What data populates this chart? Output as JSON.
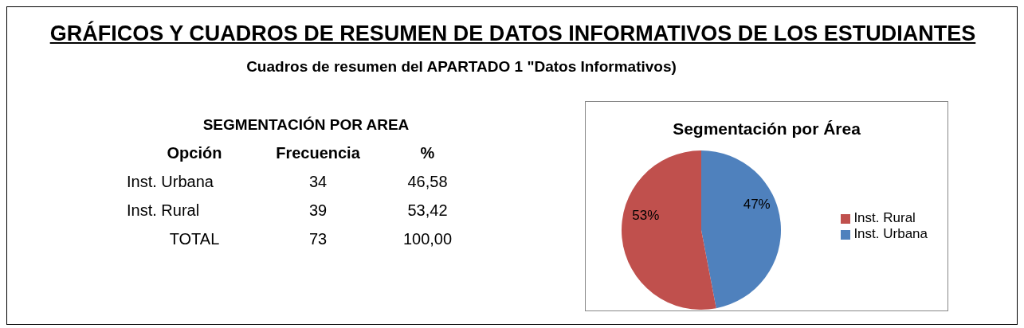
{
  "chart_data": [
    {
      "type": "other",
      "title": "GRÁFICOS Y CUADROS DE RESUMEN DE DATOS INFORMATIVOS DE LOS ESTUDIANTES",
      "subtitle": "Cuadros de resumen del APARTADO 1 \"Datos Informativos)",
      "annotations": [
        "SEGMENTACIÓN POR AREA",
        "Opción",
        "Frecuencia",
        "%",
        "Inst. Urbana",
        "34",
        "46,58",
        "Inst. Rural",
        "39",
        "53,42",
        "TOTAL",
        "73",
        "100,00"
      ]
    },
    {
      "type": "pie",
      "title": "Segmentación por Área",
      "categories": [
        "Inst. Urbana",
        "Inst. Rural"
      ],
      "values": [
        47,
        53
      ],
      "colors": [
        "#4f81bd",
        "#c0504d"
      ],
      "value_labels": [
        "47%",
        "53%"
      ],
      "legend": "right"
    }
  ]
}
